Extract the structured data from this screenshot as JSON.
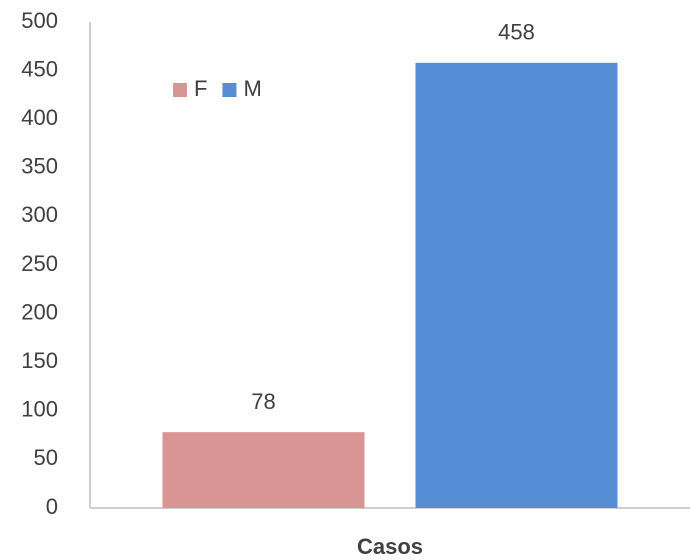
{
  "chart_data": {
    "type": "bar",
    "categories": [
      "Casos"
    ],
    "series": [
      {
        "name": "F",
        "color": "#d99594",
        "values": [
          78
        ]
      },
      {
        "name": "M",
        "color": "#558ed5",
        "values": [
          458
        ]
      }
    ],
    "ylim": [
      0,
      500
    ],
    "yticks": [
      0,
      50,
      100,
      150,
      200,
      250,
      300,
      350,
      400,
      450,
      500
    ],
    "grid": false,
    "legend": "top-left",
    "data_labels": true
  }
}
